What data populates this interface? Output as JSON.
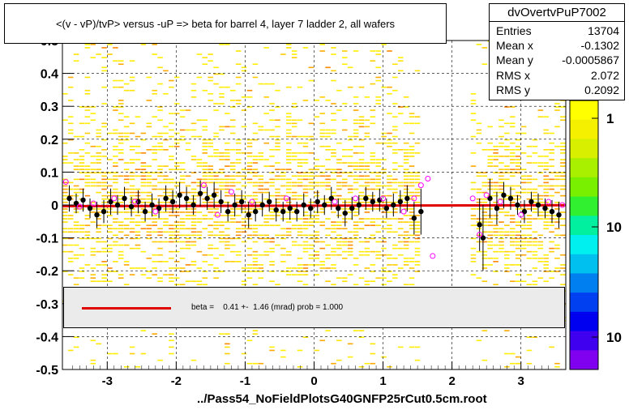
{
  "title": "<(v - vP)/tvP> versus  -uP => beta for barrel 4, layer 7 ladder 2, all wafers",
  "stats": {
    "name": "dvOvertvPuP7002",
    "rows": [
      {
        "label": "Entries",
        "value": "13704"
      },
      {
        "label": "Mean x",
        "value": "-0.1302"
      },
      {
        "label": "Mean y",
        "value": "-0.0005867"
      },
      {
        "label": "RMS x",
        "value": "2.072"
      },
      {
        "label": "RMS y",
        "value": "0.2092"
      }
    ]
  },
  "legend": {
    "text": "beta =    0.41 +-  1.46 (mrad) prob = 1.000",
    "line_color": "#e00000"
  },
  "filename": "../Pass54_NoFieldPlotsG40GNFP25rCut0.5cm.root",
  "colors": {
    "fit_line": "#e00000",
    "profile_marker": "#000000",
    "open_marker": "#ff00ff",
    "heatmap_low": "#ffee00",
    "heatmap_mid": "#ff9900"
  },
  "chart_data": {
    "type": "heatmap",
    "xlim": [
      -3.65,
      3.65
    ],
    "ylim": [
      -0.5,
      0.5
    ],
    "x_ticks": [
      -3,
      -2,
      -1,
      0,
      1,
      2,
      3
    ],
    "x_tick_labels": [
      "-3",
      "-2",
      "-1",
      "0",
      "1",
      "2",
      "3"
    ],
    "y_ticks": [
      -0.5,
      -0.4,
      -0.3,
      -0.2,
      -0.1,
      0,
      0.1,
      0.2,
      0.3,
      0.4,
      0.5
    ],
    "y_tick_labels": [
      "-0.5",
      "-0.4",
      "-0.3",
      "-0.2",
      "-0.1",
      "0",
      "0.1",
      "0.2",
      "0.3",
      "0.4",
      "0.5"
    ],
    "grid": true,
    "empty_x_ranges": [
      [
        1.55,
        2.3
      ]
    ],
    "colorbar": {
      "labels": [
        "1",
        "10",
        "10"
      ],
      "colors": [
        "#ffff00",
        "#f5f000",
        "#d8f000",
        "#a8f000",
        "#78f000",
        "#30f030",
        "#00f0a0",
        "#00f0f0",
        "#00c0f0",
        "#0080f0",
        "#0040f0",
        "#0000f0",
        "#4000f0",
        "#8000f0"
      ]
    },
    "fit": {
      "slope_mrad": 0.41,
      "error_mrad": 1.46,
      "prob": 1.0,
      "y0": -0.002
    },
    "profile_points": [
      [
        -3.55,
        0.02,
        0.04
      ],
      [
        -3.45,
        0.005,
        0.03
      ],
      [
        -3.35,
        0.015,
        0.035
      ],
      [
        -3.25,
        -0.01,
        0.03
      ],
      [
        -3.15,
        -0.03,
        0.04
      ],
      [
        -3.05,
        -0.02,
        0.035
      ],
      [
        -2.95,
        0.01,
        0.04
      ],
      [
        -2.85,
        0.0,
        0.03
      ],
      [
        -2.75,
        0.02,
        0.035
      ],
      [
        -2.65,
        -0.005,
        0.03
      ],
      [
        -2.55,
        0.01,
        0.035
      ],
      [
        -2.45,
        -0.02,
        0.03
      ],
      [
        -2.35,
        0.0,
        0.035
      ],
      [
        -2.25,
        -0.01,
        0.03
      ],
      [
        -2.15,
        0.02,
        0.04
      ],
      [
        -2.05,
        0.01,
        0.035
      ],
      [
        -1.95,
        0.03,
        0.04
      ],
      [
        -1.85,
        0.02,
        0.035
      ],
      [
        -1.75,
        0.0,
        0.03
      ],
      [
        -1.65,
        0.035,
        0.04
      ],
      [
        -1.55,
        0.02,
        0.035
      ],
      [
        -1.45,
        0.03,
        0.04
      ],
      [
        -1.35,
        0.01,
        0.035
      ],
      [
        -1.25,
        -0.02,
        0.03
      ],
      [
        -1.15,
        0.0,
        0.035
      ],
      [
        -1.05,
        0.01,
        0.035
      ],
      [
        -0.95,
        -0.03,
        0.04
      ],
      [
        -0.85,
        -0.02,
        0.03
      ],
      [
        -0.75,
        0.0,
        0.035
      ],
      [
        -0.65,
        0.01,
        0.03
      ],
      [
        -0.55,
        -0.015,
        0.035
      ],
      [
        -0.45,
        -0.02,
        0.03
      ],
      [
        -0.35,
        -0.01,
        0.035
      ],
      [
        -0.25,
        -0.02,
        0.03
      ],
      [
        -0.15,
        0.0,
        0.035
      ],
      [
        -0.05,
        -0.01,
        0.03
      ],
      [
        0.05,
        0.01,
        0.035
      ],
      [
        0.15,
        0.0,
        0.03
      ],
      [
        0.25,
        0.02,
        0.035
      ],
      [
        0.35,
        -0.01,
        0.03
      ],
      [
        0.45,
        -0.025,
        0.04
      ],
      [
        0.55,
        -0.01,
        0.035
      ],
      [
        0.65,
        0.0,
        0.03
      ],
      [
        0.75,
        0.02,
        0.035
      ],
      [
        0.85,
        0.01,
        0.03
      ],
      [
        0.95,
        0.015,
        0.035
      ],
      [
        1.05,
        -0.01,
        0.03
      ],
      [
        1.15,
        0.0,
        0.035
      ],
      [
        1.25,
        0.01,
        0.035
      ],
      [
        1.35,
        0.02,
        0.04
      ],
      [
        1.45,
        -0.04,
        0.05
      ],
      [
        1.55,
        -0.02,
        0.07
      ],
      [
        2.4,
        -0.06,
        0.08
      ],
      [
        2.45,
        -0.1,
        0.1
      ],
      [
        2.55,
        0.02,
        0.06
      ],
      [
        2.65,
        -0.01,
        0.05
      ],
      [
        2.75,
        0.03,
        0.04
      ],
      [
        2.85,
        0.02,
        0.035
      ],
      [
        2.95,
        0.0,
        0.03
      ],
      [
        3.05,
        -0.02,
        0.035
      ],
      [
        3.15,
        0.01,
        0.03
      ],
      [
        3.25,
        0.0,
        0.035
      ],
      [
        3.35,
        -0.01,
        0.03
      ],
      [
        3.45,
        -0.02,
        0.035
      ],
      [
        3.55,
        -0.03,
        0.04
      ]
    ],
    "open_points": [
      [
        -3.6,
        0.07
      ],
      [
        -3.4,
        -0.005
      ],
      [
        -3.2,
        0.005
      ],
      [
        -2.9,
        0.02
      ],
      [
        -2.6,
        0.01
      ],
      [
        -2.3,
        -0.02
      ],
      [
        -1.6,
        0.06
      ],
      [
        -1.4,
        -0.03
      ],
      [
        -1.2,
        0.04
      ],
      [
        -0.9,
        0.01
      ],
      [
        -0.4,
        0.02
      ],
      [
        0.3,
        0.01
      ],
      [
        0.6,
        0.02
      ],
      [
        1.0,
        0.02
      ],
      [
        1.3,
        -0.02
      ],
      [
        1.45,
        0.02
      ],
      [
        1.55,
        0.06
      ],
      [
        1.65,
        0.08
      ],
      [
        1.72,
        -0.155
      ],
      [
        2.3,
        0.02
      ],
      [
        2.4,
        -0.09
      ],
      [
        2.5,
        0.03
      ],
      [
        2.7,
        0.01
      ],
      [
        3.0,
        -0.03
      ],
      [
        3.4,
        0.01
      ],
      [
        3.6,
        0.0
      ]
    ]
  }
}
